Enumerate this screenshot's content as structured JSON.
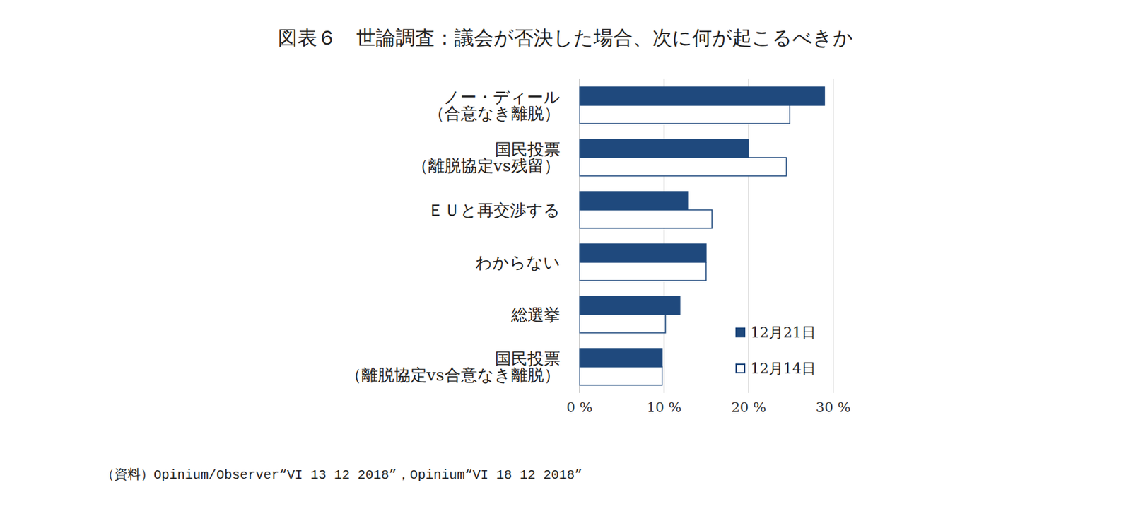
{
  "chart_data": {
    "type": "bar",
    "orientation": "horizontal",
    "title": "図表６　世論調査：議会が否決した場合、次に何が起こるべきか",
    "categories": [
      "ノー・ディール\n（合意なき離脱）",
      "国民投票\n（離脱協定vs残留）",
      "ＥＵと再交渉する",
      "わからない",
      "総選挙",
      "国民投票\n（離脱協定vs合意なき離脱）"
    ],
    "series": [
      {
        "name": "12月21日",
        "color": "#1f497d",
        "values": [
          29,
          20,
          12.9,
          15,
          11.9,
          9.8
        ]
      },
      {
        "name": "12月14日",
        "color": "#ffffff",
        "values": [
          24.9,
          24.5,
          15.7,
          15,
          10.2,
          9.8
        ]
      }
    ],
    "xlim": [
      0,
      30
    ],
    "xticks": [
      {
        "value": 0,
        "label": "0 %"
      },
      {
        "value": 10,
        "label": "10 %"
      },
      {
        "value": 20,
        "label": "20 %"
      },
      {
        "value": 30,
        "label": "30 %"
      }
    ],
    "grid": true,
    "legend": "lower right",
    "source": "（資料）Opinium/Observer“VI 13 12 2018”，Opinium“VI 18 12 2018”"
  }
}
